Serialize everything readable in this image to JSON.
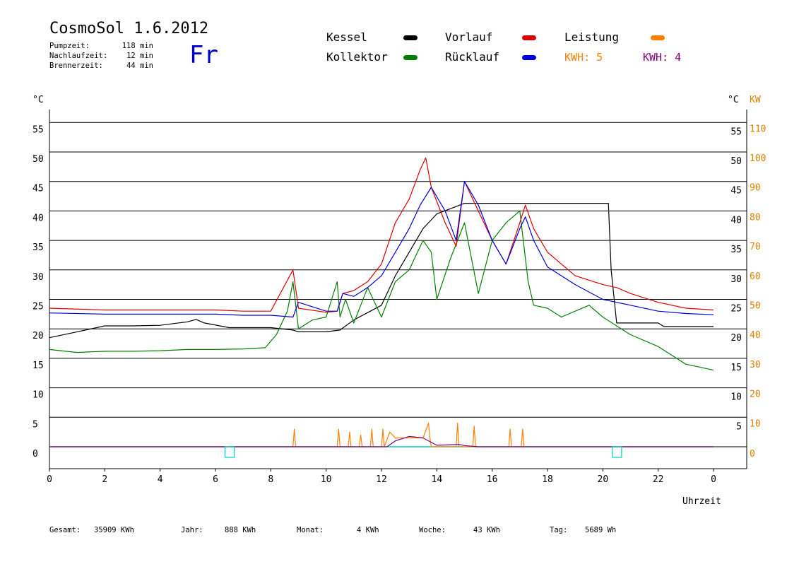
{
  "header": {
    "title": "CosmoSol 1.6.2012",
    "day": "Fr",
    "info": [
      {
        "label": "Pumpzeit:",
        "value": "118 min"
      },
      {
        "label": "Nachlaufzeit:",
        "value": "12 min"
      },
      {
        "label": "Brennerzeit:",
        "value": "44 min"
      }
    ]
  },
  "legend": {
    "kessel": {
      "label": "Kessel",
      "color": "#000000"
    },
    "kollektor": {
      "label": "Kollektor",
      "color": "#008000"
    },
    "vorlauf": {
      "label": "Vorlauf",
      "color": "#dd0000"
    },
    "ruecklauf": {
      "label": "Rücklauf",
      "color": "#0000dd"
    },
    "leistung": {
      "label": "Leistung",
      "color": "#ff8000"
    },
    "kwh1": {
      "label": "KWH: 5",
      "color": "#ff8000"
    },
    "kwh2": {
      "label": "KWH: 4",
      "color": "#800080"
    }
  },
  "axes": {
    "left_unit": "°C",
    "right_unit_temp": "°C",
    "right_unit_power": "KW",
    "x_label": "Uhrzeit"
  },
  "footer": [
    {
      "label": "Gesamt:",
      "value": "35909 KWh"
    },
    {
      "label": "Jahr:",
      "value": "888 KWh"
    },
    {
      "label": "Monat:",
      "value": "4 KWh"
    },
    {
      "label": "Woche:",
      "value": "43 KWh"
    },
    {
      "label": "Tag:",
      "value": "5689 Wh"
    }
  ],
  "chart_data": {
    "type": "line",
    "xlabel": "Uhrzeit",
    "ylabel": "°C",
    "xlim": [
      0,
      24
    ],
    "ylim": [
      -4,
      57
    ],
    "y2lim": [
      -8,
      114
    ],
    "x_ticks": [
      "0",
      "2",
      "4",
      "6",
      "8",
      "10",
      "12",
      "14",
      "16",
      "18",
      "20",
      "22",
      "0"
    ],
    "y_ticks": [
      0,
      5,
      10,
      15,
      20,
      25,
      30,
      35,
      40,
      45,
      50,
      55
    ],
    "y2_ticks": [
      0,
      10,
      20,
      30,
      40,
      50,
      60,
      70,
      80,
      90,
      100,
      110
    ],
    "grid": "horizontal",
    "series": [
      {
        "name": "Kessel",
        "color": "#000000",
        "x": [
          0,
          1,
          2,
          3,
          4,
          5,
          5.3,
          5.6,
          6.5,
          8,
          8.8,
          9,
          10,
          10.5,
          11,
          12,
          12.5,
          13,
          13.5,
          14,
          15,
          16,
          17,
          18,
          19,
          20,
          20.2,
          20.3,
          20.5,
          21,
          22,
          22.2,
          23,
          24
        ],
        "y": [
          18.5,
          19.5,
          20.5,
          20.5,
          20.6,
          21.2,
          21.6,
          21,
          20.2,
          20.2,
          19.8,
          19.5,
          19.5,
          19.8,
          21.5,
          24,
          29,
          33,
          37,
          39.5,
          41.3,
          41.3,
          41.3,
          41.3,
          41.3,
          41.3,
          41.3,
          30,
          21,
          21,
          21,
          20.4,
          20.4,
          20.4
        ]
      },
      {
        "name": "Kollektor",
        "color": "#008000",
        "x": [
          0,
          1,
          2,
          3,
          4,
          5,
          6,
          7,
          7.8,
          8.2,
          8.6,
          8.8,
          9,
          9.5,
          10,
          10.4,
          10.5,
          10.7,
          11,
          11.5,
          12,
          12.5,
          13,
          13.5,
          13.8,
          14,
          14.5,
          15,
          15.5,
          16,
          16.5,
          17,
          17.3,
          17.5,
          18,
          18.5,
          19,
          19.5,
          20,
          21,
          22,
          23,
          24
        ],
        "y": [
          16.5,
          16,
          16.2,
          16.2,
          16.3,
          16.5,
          16.5,
          16.6,
          16.8,
          19,
          23,
          28,
          20,
          21.5,
          22,
          28,
          22,
          25,
          21,
          27,
          22,
          28,
          30,
          35,
          33,
          25,
          32,
          38,
          26,
          35,
          38,
          40,
          28,
          24,
          23.5,
          22,
          23,
          24,
          22,
          19,
          17,
          14,
          13
        ]
      },
      {
        "name": "Vorlauf",
        "color": "#dd0000",
        "x": [
          0,
          2,
          4,
          6,
          7,
          8,
          8.8,
          9,
          10,
          10.4,
          10.6,
          11,
          11.5,
          12,
          12.5,
          13,
          13.4,
          13.6,
          13.8,
          14.3,
          14.7,
          15,
          15.5,
          16,
          16.5,
          17,
          17.2,
          17.5,
          18,
          19,
          20,
          20.5,
          21,
          22,
          23,
          24
        ],
        "y": [
          23.5,
          23.2,
          23.2,
          23.2,
          23,
          23,
          30,
          23.5,
          22.8,
          23,
          26,
          26.5,
          28,
          31,
          38,
          42,
          47,
          49,
          44,
          38,
          34,
          45,
          40,
          35,
          31,
          38,
          41,
          37,
          33,
          29,
          27.5,
          27,
          26,
          24.5,
          23.5,
          23.2
        ]
      },
      {
        "name": "Rücklauf",
        "color": "#0000dd",
        "x": [
          0,
          2,
          4,
          6,
          7,
          8,
          8.8,
          9,
          10,
          10.4,
          10.6,
          11,
          11.5,
          12,
          12.5,
          13,
          13.4,
          13.8,
          14.3,
          14.7,
          15,
          15.5,
          16,
          16.5,
          17,
          17.2,
          17.5,
          18,
          19,
          20,
          20.5,
          21,
          22,
          23,
          24
        ],
        "y": [
          22.7,
          22.5,
          22.5,
          22.5,
          22.3,
          22.3,
          22,
          24.5,
          23,
          23,
          26,
          25.5,
          27,
          29,
          33,
          37,
          41,
          44,
          40,
          35,
          45,
          41,
          35,
          31,
          37,
          39,
          35,
          30.5,
          27.5,
          25,
          24.5,
          24,
          23,
          22.6,
          22.4
        ]
      },
      {
        "name": "Leistung",
        "color": "#ff8000",
        "axis": "right",
        "x": [
          0,
          8.8,
          8.85,
          8.9,
          10.4,
          10.45,
          10.5,
          10.8,
          10.85,
          10.9,
          11.2,
          11.25,
          11.3,
          11.6,
          11.65,
          11.7,
          12,
          12.05,
          12.1,
          12.3,
          12.5,
          13,
          13.5,
          13.7,
          13.75,
          13.8,
          14.7,
          14.75,
          14.8,
          15.3,
          15.35,
          15.4,
          16.6,
          16.65,
          16.7,
          17.05,
          17.1,
          17.15,
          24
        ],
        "y": [
          0,
          0,
          6,
          0,
          0,
          6,
          0,
          0,
          5,
          0,
          0,
          4,
          0,
          0,
          6,
          0,
          0,
          6,
          0,
          5,
          3,
          3,
          3,
          8,
          3,
          0,
          0,
          8,
          0,
          0,
          7,
          0,
          0,
          6,
          0,
          0,
          6,
          0,
          0
        ]
      },
      {
        "name": "KWH",
        "color": "#800080",
        "axis": "right",
        "x": [
          0,
          12.2,
          12.5,
          13,
          13.5,
          14,
          14.8,
          15,
          15.5,
          24
        ],
        "y": [
          0,
          0,
          2,
          3.5,
          3,
          0.5,
          0.8,
          0.4,
          0,
          0
        ]
      }
    ],
    "markers": [
      {
        "x": 6.5,
        "y": 0,
        "color": "#00cccc"
      },
      {
        "x": 20.5,
        "y": 0,
        "color": "#00cccc"
      }
    ]
  }
}
